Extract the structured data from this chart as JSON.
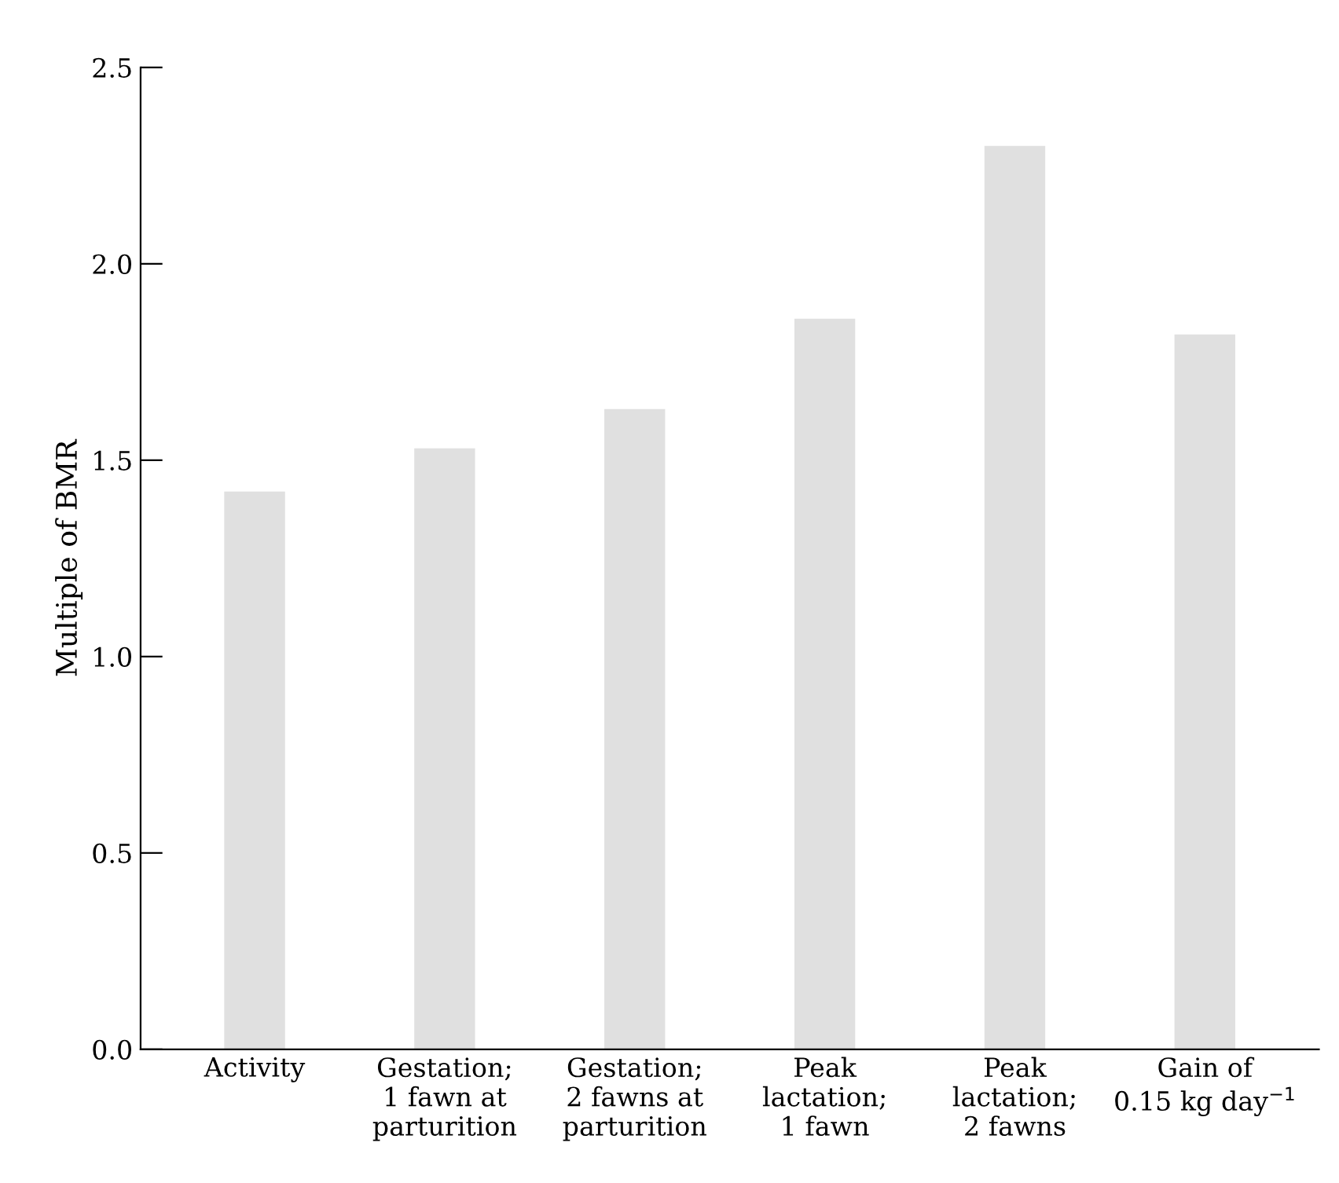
{
  "chart_data": {
    "type": "bar",
    "ylabel": "Multiple of BMR",
    "categories": [
      "Activity",
      "Gestation;\n1 fawn at\nparturition",
      "Gestation;\n2 fawns at\nparturition",
      "Peak\nlactation;\n1 fawn",
      "Peak\nlactation;\n2 fawns",
      "Gain of\n0.15 kg day$^{−1}$"
    ],
    "values": [
      1.42,
      1.53,
      1.63,
      1.86,
      2.3,
      1.82
    ],
    "color": "#e0e0e0",
    "ylim": [
      0,
      2.5
    ],
    "yticks": [
      {
        "value": 0,
        "label": "0.0"
      },
      0.5,
      {
        "value": 1,
        "label": "1.0"
      },
      1.5,
      {
        "value": 2,
        "label": "2.0"
      },
      2.5
    ],
    "grid": false
  }
}
